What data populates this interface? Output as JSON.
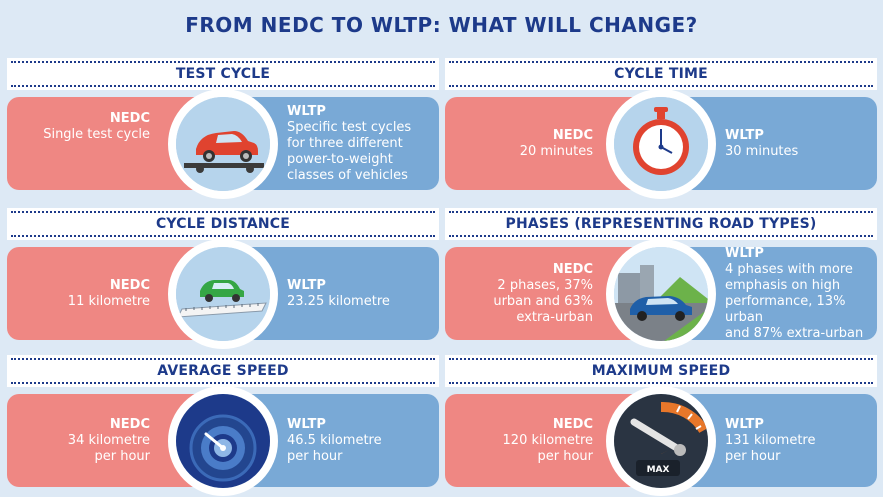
{
  "title": "FROM NEDC TO WLTP: WHAT WILL CHANGE?",
  "colors": {
    "nedc": "#ef8783",
    "wltp": "#79a9d6",
    "heading": "#1d3a8a",
    "background": "#dde9f5"
  },
  "panels": {
    "test_cycle": {
      "title": "TEST CYCLE",
      "icon": "car-on-test-bench-icon",
      "nedc_label": "NEDC",
      "nedc_lines": [
        "Single test cycle"
      ],
      "wltp_label": "WLTP",
      "wltp_lines": [
        "Specific test cycles",
        "for three different",
        "power-to-weight",
        "classes of vehicles"
      ]
    },
    "cycle_time": {
      "title": "CYCLE TIME",
      "icon": "stopwatch-icon",
      "nedc_label": "NEDC",
      "nedc_lines": [
        "20 minutes"
      ],
      "wltp_label": "WLTP",
      "wltp_lines": [
        "30 minutes"
      ]
    },
    "cycle_distance": {
      "title": "CYCLE DISTANCE",
      "icon": "car-on-ruler-icon",
      "nedc_label": "NEDC",
      "nedc_lines": [
        "11 kilometre"
      ],
      "wltp_label": "WLTP",
      "wltp_lines": [
        "23.25 kilometre"
      ]
    },
    "phases": {
      "title": "PHASES (REPRESENTING ROAD TYPES)",
      "icon": "car-on-road-icon",
      "nedc_label": "NEDC",
      "nedc_lines": [
        "2 phases, 37%",
        "urban and 63%",
        "extra-urban"
      ],
      "wltp_label": "WLTP",
      "wltp_lines": [
        "4 phases with more",
        "emphasis on high",
        "performance, 13% urban",
        "and 87% extra-urban"
      ]
    },
    "average_speed": {
      "title": "AVERAGE SPEED",
      "icon": "speedometer-icon",
      "nedc_label": "NEDC",
      "nedc_lines": [
        "34 kilometre",
        "per hour"
      ],
      "wltp_label": "WLTP",
      "wltp_lines": [
        "46.5 kilometre",
        "per hour"
      ]
    },
    "maximum_speed": {
      "title": "MAXIMUM SPEED",
      "icon": "max-gauge-icon",
      "gauge_text": "MAX",
      "nedc_label": "NEDC",
      "nedc_lines": [
        "120 kilometre",
        "per hour"
      ],
      "wltp_label": "WLTP",
      "wltp_lines": [
        "131 kilometre",
        "per hour"
      ]
    }
  }
}
